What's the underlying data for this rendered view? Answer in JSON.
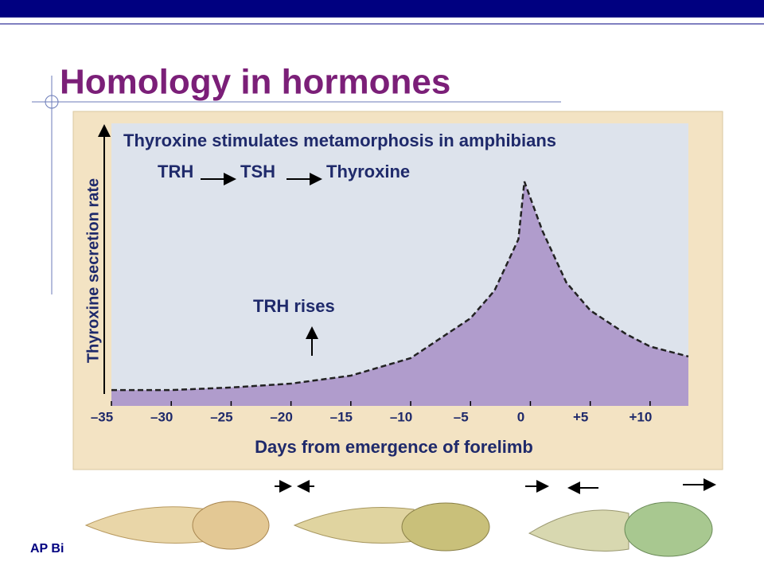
{
  "slide": {
    "title": "Homology in hormones",
    "footer": "AP Bi"
  },
  "chart_data": {
    "type": "area",
    "title": "Thyroxine stimulates metamorphosis in amphibians",
    "pathway": [
      "TRH",
      "TSH",
      "Thyroxine"
    ],
    "annotation": "TRH rises",
    "x_label": "Days from emergence of forelimb",
    "y_label": "Thyroxine secretion rate",
    "x": [
      -35,
      -30,
      -25,
      -20,
      -15,
      -10,
      -5,
      -3,
      -1,
      -0.5,
      1,
      3,
      5,
      8,
      10,
      13.2
    ],
    "values": [
      5.6,
      5.6,
      6.5,
      7.9,
      10.7,
      16.9,
      31,
      40.8,
      59,
      79.4,
      62,
      43.7,
      33.8,
      25.4,
      21,
      17.5
    ],
    "color": "#b09ccc",
    "xlim": [
      -35,
      13.2
    ],
    "ylim": [
      0,
      100
    ],
    "xticks": [
      {
        "value": -35,
        "label": "–35"
      },
      {
        "value": -30,
        "label": "–30"
      },
      {
        "value": -25,
        "label": "–25"
      },
      {
        "value": -20,
        "label": "–20"
      },
      {
        "value": -15,
        "label": "–15"
      },
      {
        "value": -10,
        "label": "–10"
      },
      {
        "value": -5,
        "label": "–5"
      },
      0,
      {
        "value": 5,
        "label": "+5"
      },
      {
        "value": 10,
        "label": "+10"
      }
    ]
  }
}
